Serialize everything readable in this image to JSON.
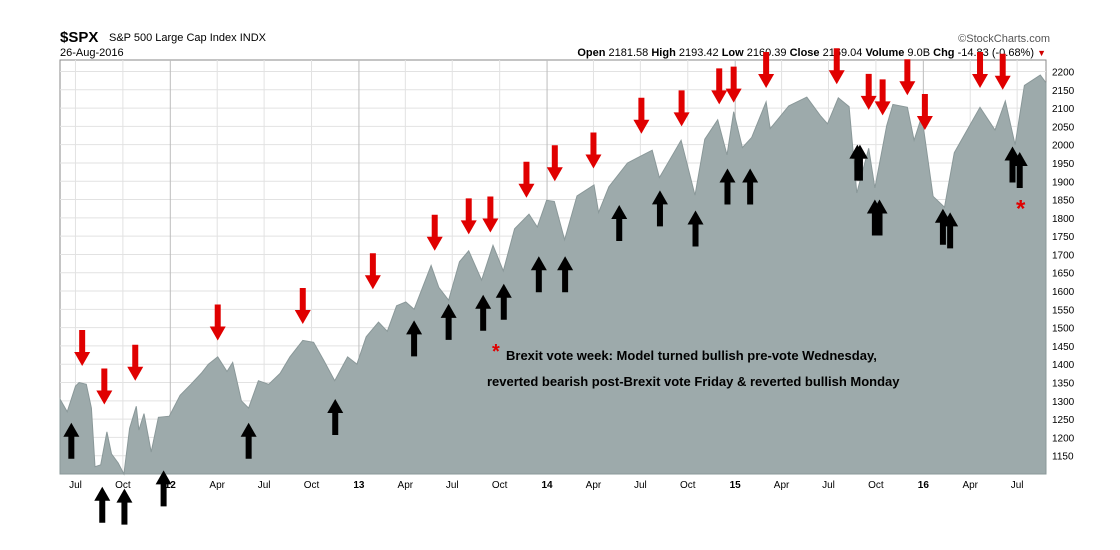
{
  "header": {
    "ticker": "$SPX",
    "name": "S&P 500 Large Cap Index",
    "exchange": "INDX",
    "date": "26-Aug-2016",
    "brand": "©StockCharts.com",
    "open_label": "Open",
    "open": "2181.58",
    "high_label": "High",
    "high": "2193.42",
    "low_label": "Low",
    "low": "2160.39",
    "close_label": "Close",
    "close": "2169.04",
    "volume_label": "Volume",
    "volume": "9.0B",
    "chg_label": "Chg",
    "chg": "-14.83 (-0.68%)"
  },
  "colors": {
    "area_fill": "#9daaab",
    "area_line": "#8a9899",
    "bearish_arrow": "#e00000",
    "bullish_arrow": "#000000",
    "annotation_star": "#e00000",
    "grid": "#e2e2e2"
  },
  "annotation": {
    "star": "*",
    "line1": "Brexit vote week: Model turned bullish pre-vote Wednesday,",
    "line2": "reverted bearish post-Brexit vote Friday & reverted bullish Monday"
  },
  "chart_data": {
    "type": "area",
    "y_axis_side": "right",
    "ylim": [
      1100,
      2220
    ],
    "y_ticks": [
      1150,
      1200,
      1250,
      1300,
      1350,
      1400,
      1450,
      1500,
      1550,
      1600,
      1650,
      1700,
      1750,
      1800,
      1850,
      1900,
      1950,
      2000,
      2050,
      2100,
      2150,
      2200
    ],
    "xlim": [
      "2011-06-01",
      "2016-08-26"
    ],
    "x_ticks": [
      {
        "date": "2011-07-01",
        "label": "Jul",
        "bold": false
      },
      {
        "date": "2011-10-01",
        "label": "Oct",
        "bold": false
      },
      {
        "date": "2012-01-01",
        "label": "12",
        "bold": true
      },
      {
        "date": "2012-04-01",
        "label": "Apr",
        "bold": false
      },
      {
        "date": "2012-07-01",
        "label": "Jul",
        "bold": false
      },
      {
        "date": "2012-10-01",
        "label": "Oct",
        "bold": false
      },
      {
        "date": "2013-01-01",
        "label": "13",
        "bold": true
      },
      {
        "date": "2013-04-01",
        "label": "Apr",
        "bold": false
      },
      {
        "date": "2013-07-01",
        "label": "Jul",
        "bold": false
      },
      {
        "date": "2013-10-01",
        "label": "Oct",
        "bold": false
      },
      {
        "date": "2014-01-01",
        "label": "14",
        "bold": true
      },
      {
        "date": "2014-04-01",
        "label": "Apr",
        "bold": false
      },
      {
        "date": "2014-07-01",
        "label": "Jul",
        "bold": false
      },
      {
        "date": "2014-10-01",
        "label": "Oct",
        "bold": false
      },
      {
        "date": "2015-01-01",
        "label": "15",
        "bold": true
      },
      {
        "date": "2015-04-01",
        "label": "Apr",
        "bold": false
      },
      {
        "date": "2015-07-01",
        "label": "Jul",
        "bold": false
      },
      {
        "date": "2015-10-01",
        "label": "Oct",
        "bold": false
      },
      {
        "date": "2016-01-01",
        "label": "16",
        "bold": true
      },
      {
        "date": "2016-04-01",
        "label": "Apr",
        "bold": false
      },
      {
        "date": "2016-07-01",
        "label": "Jul",
        "bold": false
      }
    ],
    "series": [
      {
        "points": [
          [
            "2011-06-01",
            1305
          ],
          [
            "2011-06-15",
            1270
          ],
          [
            "2011-07-01",
            1340
          ],
          [
            "2011-07-08",
            1350
          ],
          [
            "2011-07-22",
            1345
          ],
          [
            "2011-08-01",
            1280
          ],
          [
            "2011-08-08",
            1120
          ],
          [
            "2011-08-19",
            1125
          ],
          [
            "2011-08-31",
            1215
          ],
          [
            "2011-09-09",
            1155
          ],
          [
            "2011-09-22",
            1130
          ],
          [
            "2011-10-03",
            1100
          ],
          [
            "2011-10-14",
            1225
          ],
          [
            "2011-10-27",
            1285
          ],
          [
            "2011-11-01",
            1220
          ],
          [
            "2011-11-11",
            1265
          ],
          [
            "2011-11-25",
            1160
          ],
          [
            "2011-12-09",
            1255
          ],
          [
            "2011-12-30",
            1258
          ],
          [
            "2012-01-20",
            1315
          ],
          [
            "2012-02-10",
            1345
          ],
          [
            "2012-03-01",
            1375
          ],
          [
            "2012-03-15",
            1400
          ],
          [
            "2012-04-02",
            1420
          ],
          [
            "2012-04-20",
            1380
          ],
          [
            "2012-05-01",
            1405
          ],
          [
            "2012-05-18",
            1300
          ],
          [
            "2012-06-01",
            1280
          ],
          [
            "2012-06-20",
            1355
          ],
          [
            "2012-07-10",
            1345
          ],
          [
            "2012-08-01",
            1375
          ],
          [
            "2012-08-20",
            1420
          ],
          [
            "2012-09-14",
            1465
          ],
          [
            "2012-10-05",
            1460
          ],
          [
            "2012-10-25",
            1410
          ],
          [
            "2012-11-15",
            1355
          ],
          [
            "2012-12-10",
            1420
          ],
          [
            "2012-12-28",
            1400
          ],
          [
            "2013-01-15",
            1475
          ],
          [
            "2013-02-08",
            1515
          ],
          [
            "2013-02-25",
            1490
          ],
          [
            "2013-03-15",
            1560
          ],
          [
            "2013-04-02",
            1570
          ],
          [
            "2013-04-18",
            1550
          ],
          [
            "2013-05-21",
            1670
          ],
          [
            "2013-06-05",
            1610
          ],
          [
            "2013-06-24",
            1575
          ],
          [
            "2013-07-15",
            1680
          ],
          [
            "2013-08-02",
            1710
          ],
          [
            "2013-08-27",
            1630
          ],
          [
            "2013-09-18",
            1725
          ],
          [
            "2013-10-08",
            1655
          ],
          [
            "2013-10-30",
            1770
          ],
          [
            "2013-11-27",
            1810
          ],
          [
            "2013-12-13",
            1775
          ],
          [
            "2013-12-31",
            1848
          ],
          [
            "2014-01-15",
            1845
          ],
          [
            "2014-02-04",
            1740
          ],
          [
            "2014-02-28",
            1860
          ],
          [
            "2014-04-02",
            1890
          ],
          [
            "2014-04-11",
            1815
          ],
          [
            "2014-05-01",
            1885
          ],
          [
            "2014-06-06",
            1950
          ],
          [
            "2014-07-24",
            1985
          ],
          [
            "2014-08-07",
            1910
          ],
          [
            "2014-09-18",
            2012
          ],
          [
            "2014-10-15",
            1862
          ],
          [
            "2014-11-03",
            2015
          ],
          [
            "2014-11-28",
            2068
          ],
          [
            "2014-12-16",
            1972
          ],
          [
            "2014-12-29",
            2090
          ],
          [
            "2015-01-15",
            1992
          ],
          [
            "2015-02-02",
            2020
          ],
          [
            "2015-03-02",
            2117
          ],
          [
            "2015-03-10",
            2044
          ],
          [
            "2015-04-15",
            2106
          ],
          [
            "2015-05-20",
            2130
          ],
          [
            "2015-06-15",
            2080
          ],
          [
            "2015-06-29",
            2057
          ],
          [
            "2015-07-20",
            2128
          ],
          [
            "2015-08-10",
            2104
          ],
          [
            "2015-08-25",
            1868
          ],
          [
            "2015-09-17",
            1990
          ],
          [
            "2015-09-29",
            1882
          ],
          [
            "2015-10-22",
            2052
          ],
          [
            "2015-11-03",
            2110
          ],
          [
            "2015-12-01",
            2102
          ],
          [
            "2015-12-14",
            2012
          ],
          [
            "2015-12-29",
            2078
          ],
          [
            "2016-01-20",
            1859
          ],
          [
            "2016-02-11",
            1829
          ],
          [
            "2016-03-01",
            1978
          ],
          [
            "2016-04-20",
            2102
          ],
          [
            "2016-05-19",
            2040
          ],
          [
            "2016-06-08",
            2119
          ],
          [
            "2016-06-27",
            2000
          ],
          [
            "2016-07-15",
            2162
          ],
          [
            "2016-08-15",
            2190
          ],
          [
            "2016-08-26",
            2169
          ]
        ]
      }
    ],
    "bearish_signals_red_arrows": [
      [
        "2011-07-14",
        1395
      ],
      [
        "2011-08-26",
        1290
      ],
      [
        "2011-10-25",
        1355
      ],
      [
        "2012-04-02",
        1465
      ],
      [
        "2012-09-14",
        1510
      ],
      [
        "2013-01-28",
        1605
      ],
      [
        "2013-05-28",
        1710
      ],
      [
        "2013-08-02",
        1755
      ],
      [
        "2013-09-13",
        1760
      ],
      [
        "2013-11-22",
        1855
      ],
      [
        "2014-01-16",
        1900
      ],
      [
        "2014-04-01",
        1935
      ],
      [
        "2014-07-03",
        2030
      ],
      [
        "2014-09-19",
        2050
      ],
      [
        "2014-12-01",
        2110
      ],
      [
        "2014-12-29",
        2115
      ],
      [
        "2015-03-02",
        2155
      ],
      [
        "2015-07-17",
        2165
      ],
      [
        "2015-09-17",
        2095
      ],
      [
        "2015-10-14",
        2080
      ],
      [
        "2015-12-01",
        2135
      ],
      [
        "2016-01-04",
        2040
      ],
      [
        "2016-04-20",
        2155
      ],
      [
        "2016-06-03",
        2150
      ]
    ],
    "bullish_signals_black_arrows": [
      [
        "2011-06-23",
        1240
      ],
      [
        "2011-08-22",
        1065
      ],
      [
        "2011-10-04",
        1060
      ],
      [
        "2011-12-19",
        1110
      ],
      [
        "2012-06-01",
        1240
      ],
      [
        "2012-11-16",
        1305
      ],
      [
        "2013-04-18",
        1520
      ],
      [
        "2013-06-24",
        1565
      ],
      [
        "2013-08-30",
        1590
      ],
      [
        "2013-10-09",
        1620
      ],
      [
        "2013-12-16",
        1695
      ],
      [
        "2014-02-05",
        1695
      ],
      [
        "2014-05-21",
        1835
      ],
      [
        "2014-08-08",
        1875
      ],
      [
        "2014-10-16",
        1820
      ],
      [
        "2014-12-17",
        1935
      ],
      [
        "2015-01-30",
        1935
      ],
      [
        "2015-08-26",
        2000
      ],
      [
        "2015-08-31",
        2000
      ],
      [
        "2015-09-29",
        1850
      ],
      [
        "2015-10-08",
        1850
      ],
      [
        "2016-02-08",
        1825
      ],
      [
        "2016-02-22",
        1815
      ],
      [
        "2016-06-22",
        1995
      ],
      [
        "2016-07-06",
        1980
      ]
    ],
    "brexit_star_marker": [
      "2016-07-08",
      1825
    ]
  }
}
